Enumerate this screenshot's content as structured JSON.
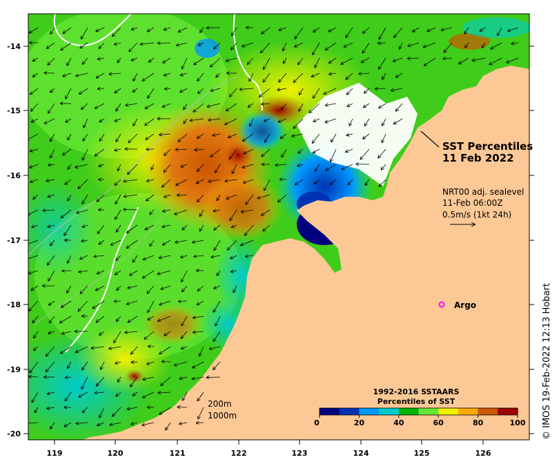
{
  "title": {
    "line1": "SST Percentiles",
    "line2": "11 Feb 2022"
  },
  "currents_legend": {
    "line1": "NRT00 adj. sealevel",
    "line2": "11-Feb 06:00Z",
    "line3": "0.5m/s (1kt 24h)"
  },
  "argo_label": "Argo",
  "depth_contours": {
    "shallow": "200m",
    "deep": "1000m"
  },
  "colorbar": {
    "title1": "1992-2016 SSTAARS",
    "title2": "Percentiles of SST",
    "ticks": [
      "0",
      "20",
      "40",
      "60",
      "80",
      "100"
    ],
    "colors": [
      "#00007f",
      "#0033b3",
      "#0099ff",
      "#00cccc",
      "#00b300",
      "#66e633",
      "#f0f000",
      "#ffaa00",
      "#cc5500",
      "#990000"
    ]
  },
  "credit": "© IMOS 19-Feb-2022 12:13 Hobart",
  "axes": {
    "lon_ticks": [
      "119",
      "120",
      "121",
      "122",
      "123",
      "124",
      "125",
      "126"
    ],
    "lat_ticks": [
      "-14",
      "-15",
      "-16",
      "-17",
      "-18",
      "-19",
      "-20"
    ]
  },
  "colors": {
    "land": "#fcc896",
    "unknown": "#ffffff"
  }
}
